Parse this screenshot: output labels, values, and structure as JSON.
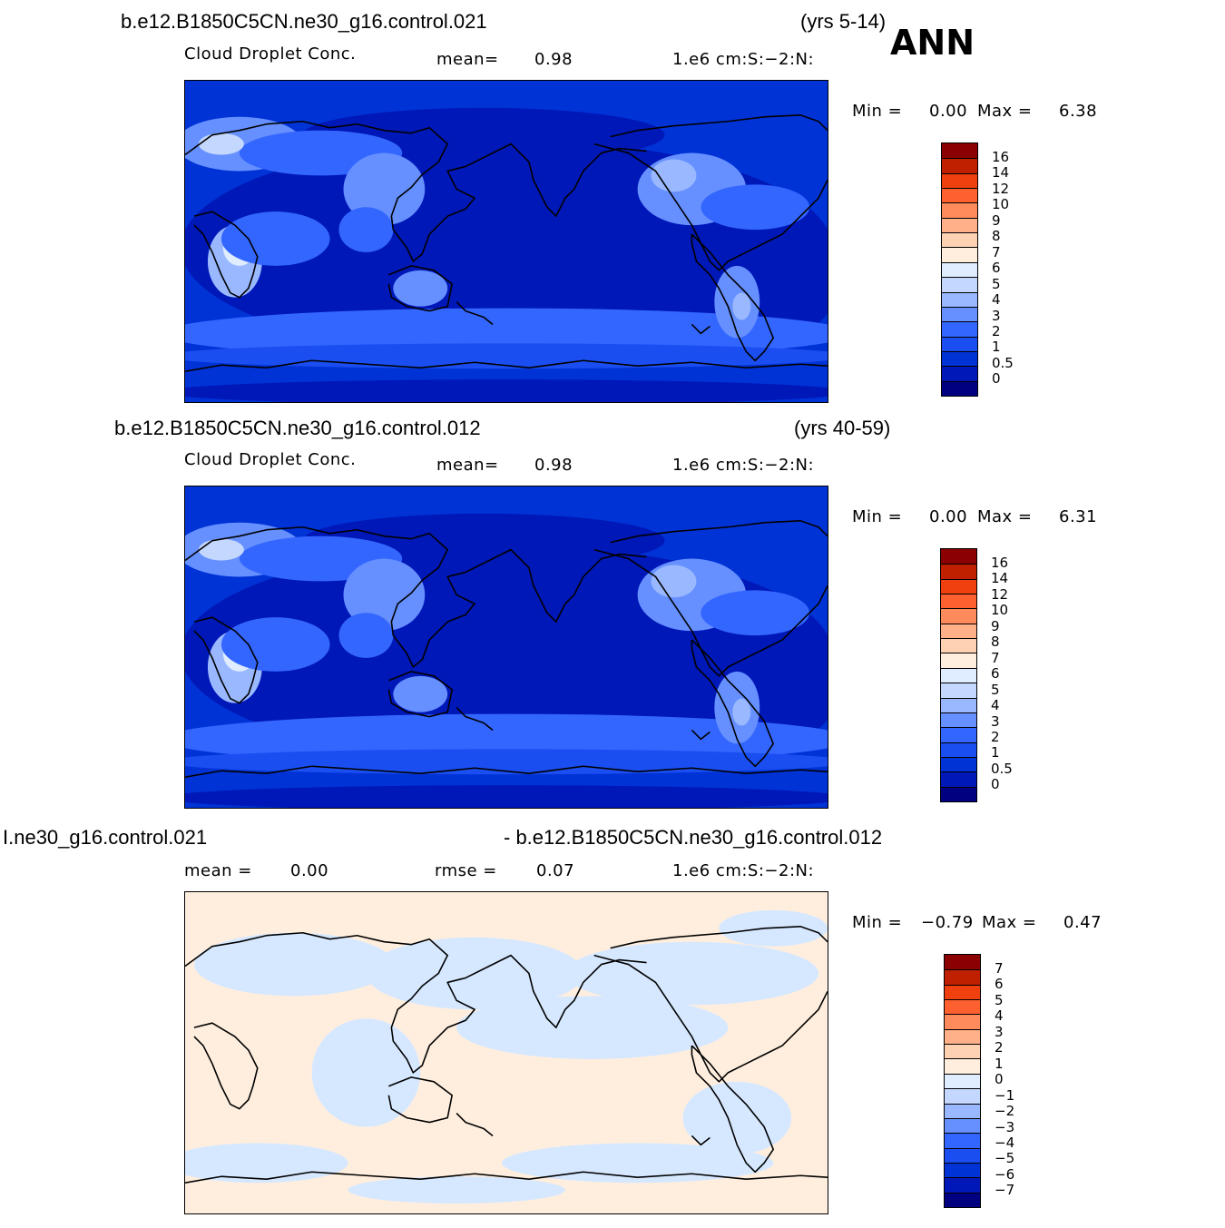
{
  "season": "ANN",
  "palette_full": [
    "#000080",
    "#0018b8",
    "#0033d6",
    "#1a4ef0",
    "#3366ff",
    "#6690ff",
    "#99b8ff",
    "#c4d7ff",
    "#e0ecff",
    "#ffeede",
    "#ffd1b3",
    "#ffb088",
    "#ff8a5c",
    "#ff6030",
    "#f04010",
    "#c02000",
    "#8b0000"
  ],
  "panels": [
    {
      "case_title": "b.e12.B1850C5CN.ne30_g16.control.021",
      "years": "(yrs 5-14)",
      "variable": "Cloud Droplet Conc.",
      "stat_label": "mean=",
      "stat_value": "0.98",
      "units": "1.e6 cm:S:−2:N:",
      "min_label": "Min =",
      "min_value": "0.00",
      "max_label": "Max =",
      "max_value": "6.38",
      "colorbar_labels": [
        "16",
        "14",
        "12",
        "10",
        "9",
        "8",
        "7",
        "6",
        "5",
        "4",
        "3",
        "2",
        "1",
        "0.5",
        "0"
      ],
      "map_style": "field"
    },
    {
      "case_title": "b.e12.B1850C5CN.ne30_g16.control.012",
      "years": "(yrs 40-59)",
      "variable": "Cloud Droplet Conc.",
      "stat_label": "mean=",
      "stat_value": "0.98",
      "units": "1.e6 cm:S:−2:N:",
      "min_label": "Min =",
      "min_value": "0.00",
      "max_label": "Max =",
      "max_value": "6.31",
      "colorbar_labels": [
        "16",
        "14",
        "12",
        "10",
        "9",
        "8",
        "7",
        "6",
        "5",
        "4",
        "3",
        "2",
        "1",
        "0.5",
        "0"
      ],
      "map_style": "field"
    },
    {
      "case_title": "I.ne30_g16.control.021",
      "case_title_2": "- b.e12.B1850C5CN.ne30_g16.control.012",
      "stat_label": "mean =",
      "stat_value": "0.00",
      "stat2_label": "rmse =",
      "stat2_value": "0.07",
      "units": "1.e6 cm:S:−2:N:",
      "min_label": "Min =",
      "min_value": "−0.79",
      "max_label": "Max =",
      "max_value": "0.47",
      "colorbar_labels": [
        "7",
        "6",
        "5",
        "4",
        "3",
        "2",
        "1",
        "0",
        "−1",
        "−2",
        "−3",
        "−4",
        "−5",
        "−6",
        "−7"
      ],
      "map_style": "diff"
    }
  ]
}
